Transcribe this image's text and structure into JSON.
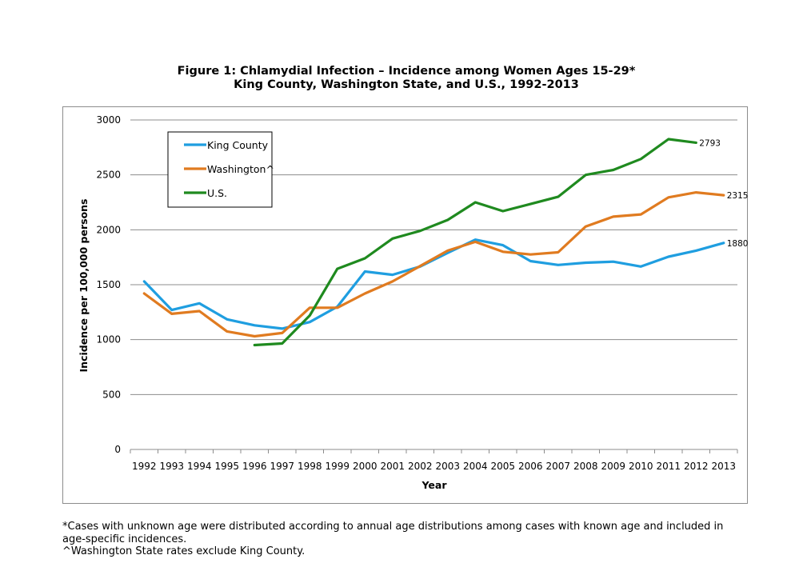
{
  "chart_data": {
    "type": "line",
    "title_line1": "Figure 1: Chlamydial Infection – Incidence among Women Ages 15-29*",
    "title_line2": "King County, Washington State, and U.S., 1992-2013",
    "xlabel": "Year",
    "ylabel": "Incidence per 100,000 persons",
    "ylim": [
      0,
      3000
    ],
    "yticks": [
      "0",
      "500",
      "1000",
      "1500",
      "2000",
      "2500",
      "3000"
    ],
    "categories": [
      "1992",
      "1993",
      "1994",
      "1995",
      "1996",
      "1997",
      "1998",
      "1999",
      "2000",
      "2001",
      "2002",
      "2003",
      "2004",
      "2005",
      "2006",
      "2007",
      "2008",
      "2009",
      "2010",
      "2011",
      "2012",
      "2013"
    ],
    "grid": true,
    "legend_position": "top-left",
    "series": [
      {
        "name": "King County",
        "color": "#1f9ee0",
        "values": [
          1530,
          1270,
          1330,
          1185,
          1130,
          1100,
          1160,
          1300,
          1620,
          1590,
          1665,
          1790,
          1910,
          1860,
          1715,
          1680,
          1700,
          1710,
          1665,
          1755,
          1810,
          1880
        ]
      },
      {
        "name": "Washington^",
        "color": "#e07b20",
        "values": [
          1420,
          1235,
          1260,
          1075,
          1030,
          1060,
          1290,
          1290,
          1420,
          1530,
          1670,
          1810,
          1890,
          1800,
          1775,
          1795,
          2030,
          2120,
          2140,
          2295,
          2340,
          2315
        ]
      },
      {
        "name": "U.S.",
        "color": "#1f8a1f",
        "values": [
          null,
          null,
          null,
          null,
          950,
          965,
          1220,
          1645,
          1740,
          1920,
          1990,
          2090,
          2250,
          2170,
          2235,
          2300,
          2500,
          2545,
          2645,
          2825,
          2793,
          null
        ]
      }
    ],
    "end_labels": [
      {
        "series": 2,
        "text": "2793"
      },
      {
        "series": 1,
        "text": "2315"
      },
      {
        "series": 0,
        "text": "1880"
      }
    ]
  },
  "footnotes": [
    "*Cases with unknown age were distributed according to annual age distributions among cases with known age and included in",
    "age-specific incidences.",
    "^Washington State rates exclude King County."
  ]
}
